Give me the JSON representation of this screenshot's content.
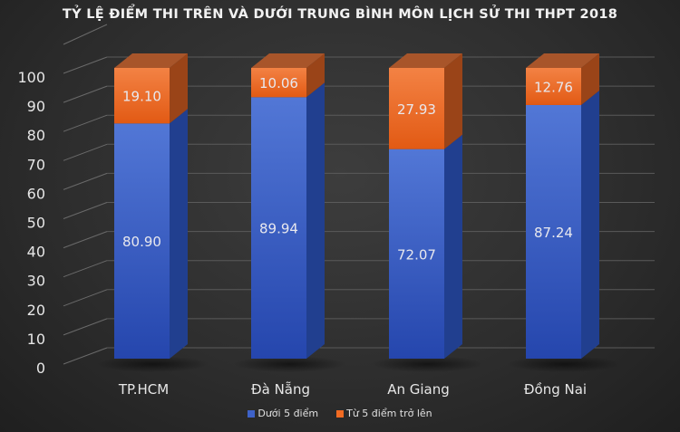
{
  "title": "TỶ LỆ ĐIỂM THI TRÊN VÀ DƯỚI TRUNG BÌNH MÔN LỊCH SỬ THI THPT 2018",
  "colors": {
    "below": "#4a6fd0",
    "below_dark": "#2a4aa6",
    "above": "#f2762e",
    "above_dark": "#d35a1a",
    "background": "#2e2e2e",
    "text": "#e6e6e6"
  },
  "legend": [
    {
      "label": "Dưới 5 điểm",
      "color": "#3e62c8"
    },
    {
      "label": "Từ 5 điểm trở lên",
      "color": "#f26b22"
    }
  ],
  "chart_data": {
    "type": "bar",
    "stacked": true,
    "style": "3d-stacked-column",
    "title": "TỶ LỆ ĐIỂM THI TRÊN VÀ DƯỚI TRUNG BÌNH MÔN LỊCH SỬ THI THPT 2018",
    "categories": [
      "TP.HCM",
      "Đà Nẵng",
      "An Giang",
      "Đồng Nai"
    ],
    "series": [
      {
        "name": "Dưới 5 điểm",
        "values": [
          80.9,
          89.94,
          72.07,
          87.24
        ]
      },
      {
        "name": "Từ 5 điểm trở lên",
        "values": [
          19.1,
          10.06,
          27.93,
          12.76
        ]
      }
    ],
    "data_labels": {
      "Dưới 5 điểm": [
        "80.90",
        "89.94",
        "72.07",
        "87.24"
      ],
      "Từ 5 điểm trở lên": [
        "19.10",
        "10.06",
        "27.93",
        "12.76"
      ]
    },
    "xlabel": "",
    "ylabel": "",
    "ylim": [
      0,
      100
    ],
    "yticks": [
      0,
      10,
      20,
      30,
      40,
      50,
      60,
      70,
      80,
      90,
      100
    ],
    "grid": true,
    "legend_position": "bottom"
  }
}
